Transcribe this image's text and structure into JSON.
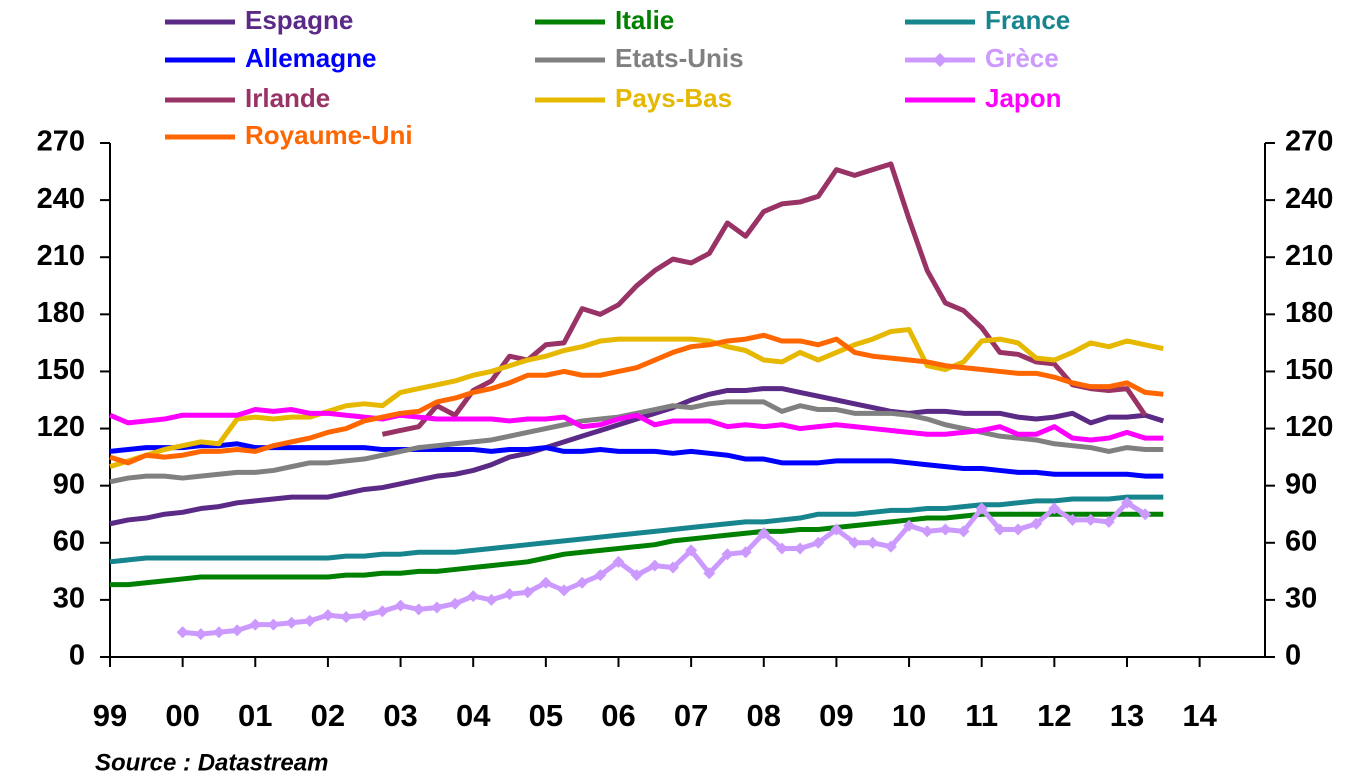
{
  "chart_data": {
    "type": "line",
    "source": "Source : Datastream",
    "xlim": [
      1999,
      2014.9
    ],
    "xticks": [
      {
        "value": 1999,
        "label": "99"
      },
      {
        "value": 2000,
        "label": "00"
      },
      {
        "value": 2001,
        "label": "01"
      },
      {
        "value": 2002,
        "label": "02"
      },
      {
        "value": 2003,
        "label": "03"
      },
      {
        "value": 2004,
        "label": "04"
      },
      {
        "value": 2005,
        "label": "05"
      },
      {
        "value": 2006,
        "label": "06"
      },
      {
        "value": 2007,
        "label": "07"
      },
      {
        "value": 2008,
        "label": "08"
      },
      {
        "value": 2009,
        "label": "09"
      },
      {
        "value": 2010,
        "label": "10"
      },
      {
        "value": 2011,
        "label": "11"
      },
      {
        "value": 2012,
        "label": "12"
      },
      {
        "value": 2013,
        "label": "13"
      },
      {
        "value": 2014,
        "label": "14"
      }
    ],
    "ylim": [
      0,
      270
    ],
    "yticks": [
      0,
      30,
      60,
      90,
      120,
      150,
      180,
      210,
      240,
      270
    ],
    "x": [
      1999,
      1999.25,
      1999.5,
      1999.75,
      2000,
      2000.25,
      2000.5,
      2000.75,
      2001,
      2001.25,
      2001.5,
      2001.75,
      2002,
      2002.25,
      2002.5,
      2002.75,
      2003,
      2003.25,
      2003.5,
      2003.75,
      2004,
      2004.25,
      2004.5,
      2004.75,
      2005,
      2005.25,
      2005.5,
      2005.75,
      2006,
      2006.25,
      2006.5,
      2006.75,
      2007,
      2007.25,
      2007.5,
      2007.75,
      2008,
      2008.25,
      2008.5,
      2008.75,
      2009,
      2009.25,
      2009.5,
      2009.75,
      2010,
      2010.25,
      2010.5,
      2010.75,
      2011,
      2011.25,
      2011.5,
      2011.75,
      2012,
      2012.25,
      2012.5,
      2012.75,
      2013,
      2013.25,
      2013.5
    ],
    "series": [
      {
        "name": "Espagne",
        "color": "#5b2a86",
        "values": [
          70,
          72,
          73,
          75,
          76,
          78,
          79,
          81,
          82,
          83,
          84,
          84,
          84,
          86,
          88,
          89,
          91,
          93,
          95,
          96,
          98,
          101,
          105,
          107,
          110,
          113,
          116,
          119,
          122,
          125,
          128,
          131,
          135,
          138,
          140,
          140,
          141,
          141,
          139,
          137,
          135,
          133,
          131,
          129,
          128,
          129,
          129,
          128,
          128,
          128,
          126,
          125,
          126,
          128,
          123,
          126,
          126,
          127,
          124
        ]
      },
      {
        "name": "Italie",
        "color": "#008000",
        "values": [
          38,
          38,
          39,
          40,
          41,
          42,
          42,
          42,
          42,
          42,
          42,
          42,
          42,
          43,
          43,
          44,
          44,
          45,
          45,
          46,
          47,
          48,
          49,
          50,
          52,
          54,
          55,
          56,
          57,
          58,
          59,
          61,
          62,
          63,
          64,
          65,
          66,
          66,
          67,
          67,
          68,
          69,
          70,
          71,
          72,
          73,
          73,
          74,
          75,
          75,
          75,
          75,
          75,
          75,
          75,
          75,
          75,
          75,
          75
        ]
      },
      {
        "name": "France",
        "color": "#17858e",
        "values": [
          50,
          51,
          52,
          52,
          52,
          52,
          52,
          52,
          52,
          52,
          52,
          52,
          52,
          53,
          53,
          54,
          54,
          55,
          55,
          55,
          56,
          57,
          58,
          59,
          60,
          61,
          62,
          63,
          64,
          65,
          66,
          67,
          68,
          69,
          70,
          71,
          71,
          72,
          73,
          75,
          75,
          75,
          76,
          77,
          77,
          78,
          78,
          79,
          80,
          80,
          81,
          82,
          82,
          83,
          83,
          83,
          84,
          84,
          84
        ]
      },
      {
        "name": "Allemagne",
        "color": "#0000ff",
        "values": [
          108,
          109,
          110,
          110,
          110,
          111,
          111,
          112,
          110,
          110,
          110,
          110,
          110,
          110,
          110,
          109,
          109,
          109,
          109,
          109,
          109,
          108,
          109,
          109,
          110,
          108,
          108,
          109,
          108,
          108,
          108,
          107,
          108,
          107,
          106,
          104,
          104,
          102,
          102,
          102,
          103,
          103,
          103,
          103,
          102,
          101,
          100,
          99,
          99,
          98,
          97,
          97,
          96,
          96,
          96,
          96,
          96,
          95,
          95
        ]
      },
      {
        "name": "Etats-Unis",
        "color": "#808080",
        "values": [
          92,
          94,
          95,
          95,
          94,
          95,
          96,
          97,
          97,
          98,
          100,
          102,
          102,
          103,
          104,
          106,
          108,
          110,
          111,
          112,
          113,
          114,
          116,
          118,
          120,
          122,
          124,
          125,
          126,
          128,
          130,
          132,
          131,
          133,
          134,
          134,
          134,
          129,
          132,
          130,
          130,
          128,
          128,
          128,
          127,
          125,
          122,
          120,
          118,
          116,
          115,
          114,
          112,
          111,
          110,
          108,
          110,
          109,
          109
        ]
      },
      {
        "name": "Grèce",
        "color": "#cc99ff",
        "marker": "diamond",
        "values": [
          null,
          null,
          null,
          null,
          13,
          12,
          13,
          14,
          17,
          17,
          18,
          19,
          22,
          21,
          22,
          24,
          27,
          25,
          26,
          28,
          32,
          30,
          33,
          34,
          39,
          35,
          39,
          43,
          50,
          43,
          48,
          47,
          56,
          44,
          54,
          55,
          65,
          57,
          57,
          60,
          67,
          60,
          60,
          58,
          69,
          66,
          67,
          66,
          78,
          67,
          67,
          70,
          78,
          72,
          72,
          71,
          81,
          75,
          null
        ]
      },
      {
        "name": "Irlande",
        "color": "#993366",
        "values": [
          null,
          null,
          null,
          null,
          null,
          null,
          null,
          null,
          null,
          null,
          null,
          null,
          null,
          null,
          null,
          117,
          119,
          121,
          132,
          127,
          140,
          145,
          158,
          156,
          164,
          165,
          183,
          180,
          185,
          195,
          203,
          209,
          207,
          212,
          228,
          221,
          234,
          238,
          239,
          242,
          256,
          253,
          256,
          259,
          230,
          203,
          186,
          182,
          173,
          160,
          159,
          155,
          154,
          143,
          141,
          140,
          141,
          127,
          null
        ]
      },
      {
        "name": "Pays-Bas",
        "color": "#e6b800",
        "values": [
          100,
          103,
          106,
          109,
          111,
          113,
          112,
          125,
          126,
          125,
          126,
          126,
          129,
          132,
          133,
          132,
          139,
          141,
          143,
          145,
          148,
          150,
          153,
          156,
          158,
          161,
          163,
          166,
          167,
          167,
          167,
          167,
          167,
          166,
          163,
          161,
          156,
          155,
          160,
          156,
          160,
          164,
          167,
          171,
          172,
          153,
          151,
          155,
          166,
          167,
          165,
          157,
          156,
          160,
          165,
          163,
          166,
          164,
          162
        ]
      },
      {
        "name": "Japon",
        "color": "#ff00ff",
        "values": [
          127,
          123,
          124,
          125,
          127,
          127,
          127,
          127,
          130,
          129,
          130,
          128,
          128,
          127,
          126,
          125,
          127,
          126,
          125,
          125,
          125,
          125,
          124,
          125,
          125,
          126,
          121,
          122,
          125,
          127,
          122,
          124,
          124,
          124,
          121,
          122,
          121,
          122,
          120,
          121,
          122,
          121,
          120,
          119,
          118,
          117,
          117,
          118,
          119,
          121,
          117,
          117,
          121,
          115,
          114,
          115,
          118,
          115,
          115
        ]
      },
      {
        "name": "Royaume-Uni",
        "color": "#ff6600",
        "values": [
          105,
          102,
          106,
          105,
          106,
          108,
          108,
          109,
          108,
          111,
          113,
          115,
          118,
          120,
          124,
          126,
          128,
          129,
          134,
          136,
          139,
          141,
          144,
          148,
          148,
          150,
          148,
          148,
          150,
          152,
          156,
          160,
          163,
          164,
          166,
          167,
          169,
          166,
          166,
          164,
          167,
          160,
          158,
          157,
          156,
          155,
          153,
          152,
          151,
          150,
          149,
          149,
          147,
          144,
          142,
          142,
          144,
          139,
          138
        ]
      }
    ]
  }
}
